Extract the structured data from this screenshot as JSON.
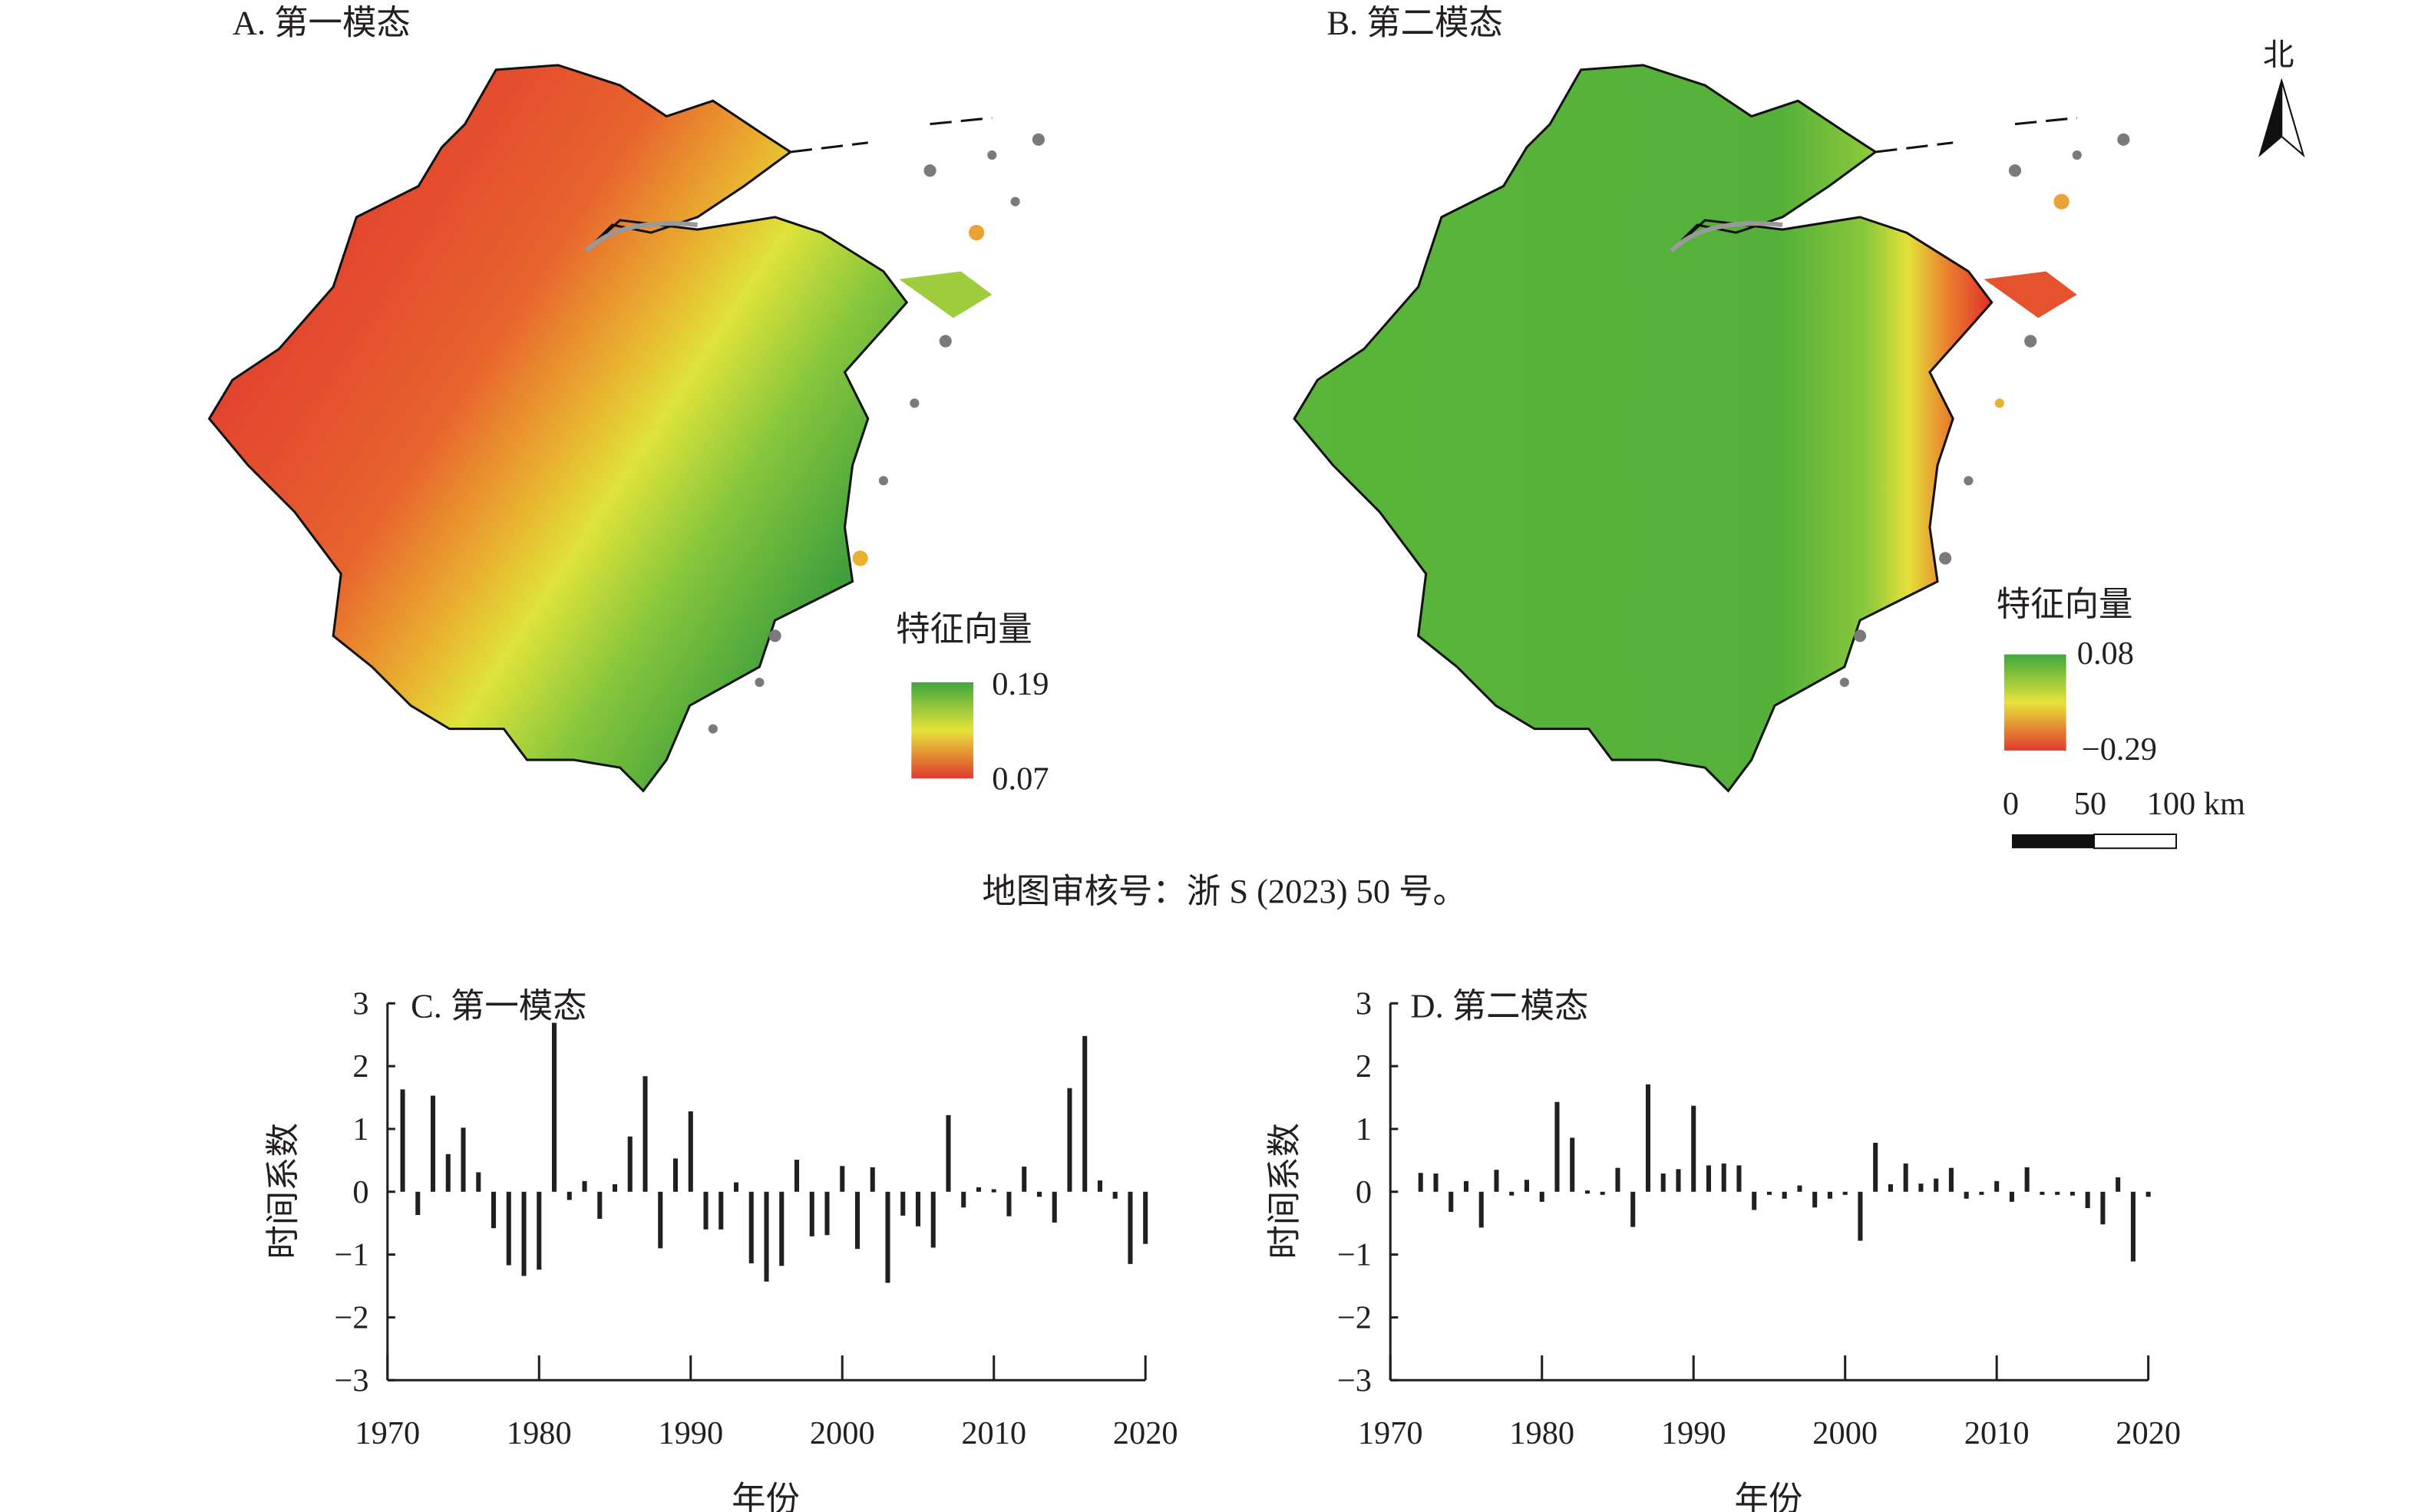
{
  "maps": [
    {
      "title": "A. 第一模态",
      "legend_title": "特征向量",
      "legend_max": "0.19",
      "legend_min": "0.07",
      "colors": {
        "high": "#3fa83c",
        "mid": "#e6e33a",
        "low": "#e23a2e"
      }
    },
    {
      "title": "B. 第二模态",
      "legend_title": "特征向量",
      "legend_max": "0.08",
      "legend_min": "−0.29",
      "colors": {
        "high": "#4fb13a",
        "mid": "#e6e33a",
        "low": "#e23a2e"
      }
    }
  ],
  "north_label": "北",
  "scale_bar": {
    "labels": [
      "0",
      "50",
      "100 km"
    ]
  },
  "caption": "地图审核号：浙 S (2023) 50 号。",
  "chart_data": [
    {
      "type": "bar",
      "title": "C. 第一模态",
      "xlabel": "年份",
      "ylabel": "时间系数",
      "ylim": [
        -3,
        3
      ],
      "xlim": [
        1970,
        2020
      ],
      "yticks": [
        "3",
        "2",
        "1",
        "0",
        "−1",
        "−2",
        "−3"
      ],
      "xticks": [
        "1970",
        "1980",
        "1990",
        "2000",
        "2010",
        "2020"
      ],
      "x": [
        1971,
        1972,
        1973,
        1974,
        1975,
        1976,
        1977,
        1978,
        1979,
        1980,
        1981,
        1982,
        1983,
        1984,
        1985,
        1986,
        1987,
        1988,
        1989,
        1990,
        1991,
        1992,
        1993,
        1994,
        1995,
        1996,
        1997,
        1998,
        1999,
        2000,
        2001,
        2002,
        2003,
        2004,
        2005,
        2006,
        2007,
        2008,
        2009,
        2010,
        2011,
        2012,
        2013,
        2014,
        2015,
        2016,
        2017,
        2018,
        2019,
        2020
      ],
      "values": [
        1.63,
        -0.37,
        1.53,
        0.6,
        1.02,
        0.31,
        -0.58,
        -1.17,
        -1.34,
        -1.24,
        2.69,
        -0.13,
        0.17,
        -0.43,
        0.12,
        0.88,
        1.84,
        -0.9,
        0.53,
        1.28,
        -0.6,
        -0.6,
        0.15,
        -1.14,
        -1.43,
        -1.18,
        0.51,
        -0.71,
        -0.69,
        0.41,
        -0.91,
        0.39,
        -1.45,
        -0.38,
        -0.55,
        -0.89,
        1.22,
        -0.25,
        0.07,
        0.04,
        -0.39,
        0.4,
        -0.08,
        -0.49,
        1.65,
        2.48,
        0.18,
        -0.11,
        -1.15,
        -0.83
      ]
    },
    {
      "type": "bar",
      "title": "D. 第二模态",
      "xlabel": "年份",
      "ylabel": "时间系数",
      "ylim": [
        -3,
        3
      ],
      "xlim": [
        1970,
        2020
      ],
      "yticks": [
        "3",
        "2",
        "1",
        "0",
        "−1",
        "−2",
        "−3"
      ],
      "xticks": [
        "1970",
        "1980",
        "1990",
        "2000",
        "2010",
        "2020"
      ],
      "x": [
        1972,
        1973,
        1974,
        1975,
        1976,
        1977,
        1978,
        1979,
        1980,
        1981,
        1982,
        1983,
        1984,
        1985,
        1986,
        1987,
        1988,
        1989,
        1990,
        1991,
        1992,
        1993,
        1994,
        1995,
        1996,
        1997,
        1998,
        1999,
        2000,
        2001,
        2002,
        2003,
        2004,
        2005,
        2006,
        2007,
        2008,
        2009,
        2010,
        2011,
        2012,
        2013,
        2014,
        2015,
        2016,
        2017,
        2018,
        2019,
        2020
      ],
      "values": [
        0.3,
        0.29,
        -0.32,
        0.17,
        -0.57,
        0.35,
        -0.06,
        0.19,
        -0.16,
        1.43,
        0.86,
        0.02,
        -0.04,
        0.38,
        -0.56,
        1.71,
        0.29,
        0.36,
        1.37,
        0.42,
        0.45,
        0.42,
        -0.29,
        -0.02,
        -0.11,
        0.1,
        -0.25,
        -0.11,
        -0.03,
        -0.78,
        0.78,
        0.12,
        0.45,
        0.13,
        0.21,
        0.38,
        -0.11,
        -0.04,
        0.17,
        -0.16,
        0.39,
        -0.03,
        -0.04,
        -0.06,
        -0.26,
        -0.52,
        0.23,
        -1.11,
        -0.08
      ]
    }
  ]
}
